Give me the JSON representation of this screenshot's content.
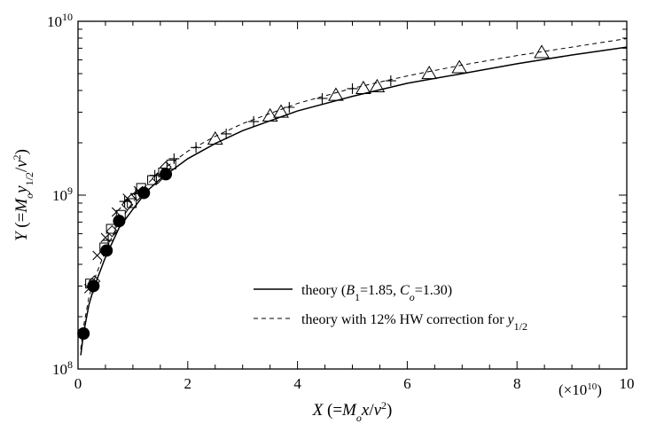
{
  "chart_data": {
    "type": "scatter",
    "x_scale": "linear",
    "y_scale": "log",
    "xlim": [
      0,
      10
    ],
    "ylim": [
      100000000.0,
      10000000000.0
    ],
    "x_ticks": [
      0,
      2,
      4,
      6,
      8,
      10
    ],
    "x_tick_labels": [
      "0",
      "2",
      "4",
      "6",
      "8",
      "10"
    ],
    "y_ticks": [
      100000000.0,
      1000000000.0,
      10000000000.0
    ],
    "y_tick_labels": [
      {
        "base": "10",
        "exp": "8"
      },
      {
        "base": "10",
        "exp": "9"
      },
      {
        "base": "10",
        "exp": "10"
      }
    ],
    "x_multiplier": {
      "prefix": "(×10",
      "exp": "10",
      "suffix": ")"
    },
    "xlabel": {
      "lead": "X",
      "open": " (=",
      "M": "M",
      "o": "o",
      "x": "x",
      "slash": "/",
      "nu": "ν",
      "sq": "2",
      "close": ")"
    },
    "ylabel": {
      "lead": "Y",
      "open": " (=",
      "M": "M",
      "o": "o",
      "y": "y",
      "half": "1/2",
      "slash": "/",
      "nu": "ν",
      "sq": "2",
      "close": ")"
    },
    "legend": {
      "position": "lower-right",
      "entries": [
        {
          "style": "solid",
          "parts": {
            "pre": "theory (",
            "B": "B",
            "Bsub": "1",
            "mid": "=1.85, ",
            "C": "C",
            "Csub": "o",
            "post": "=1.30)"
          }
        },
        {
          "style": "dashed",
          "parts": {
            "pre": "theory with 12% HW correction for ",
            "y": "y",
            "ysub": "1/2"
          }
        }
      ]
    },
    "curves": [
      {
        "style": "solid",
        "x": [
          0.02,
          0.05,
          0.1,
          0.2,
          0.3,
          0.5,
          0.75,
          1.0,
          1.25,
          1.5,
          2.0,
          2.5,
          3.0,
          4.0,
          5.0,
          6.0,
          7.0,
          8.0,
          9.0,
          10.0
        ],
        "y": [
          90000000.0,
          120000000.0,
          160000000.0,
          235000000.0,
          300000000.0,
          440000000.0,
          650000000.0,
          830000000.0,
          1050000000.0,
          1240000000.0,
          1620000000.0,
          1980000000.0,
          2350000000.0,
          3050000000.0,
          3700000000.0,
          4400000000.0,
          5000000000.0,
          5700000000.0,
          6400000000.0,
          7100000000.0
        ]
      },
      {
        "style": "dashed",
        "x": [
          0.02,
          0.05,
          0.1,
          0.2,
          0.3,
          0.5,
          0.75,
          1.0,
          1.25,
          1.5,
          2.0,
          2.5,
          3.0,
          4.0,
          5.0,
          6.0,
          7.0,
          8.0,
          9.0,
          10.0
        ],
        "y": [
          95000000.0,
          130000000.0,
          175000000.0,
          260000000.0,
          330000000.0,
          480000000.0,
          700000000.0,
          910000000.0,
          1150000000.0,
          1370000000.0,
          1790000000.0,
          2180000000.0,
          2580000000.0,
          3370000000.0,
          4120000000.0,
          4850000000.0,
          5600000000.0,
          6350000000.0,
          7100000000.0,
          7950000000.0
        ]
      }
    ],
    "series": [
      {
        "marker": "filled-circle",
        "x": [
          0.1,
          0.28,
          0.52,
          0.75,
          1.2,
          1.6
        ],
        "y": [
          160000000.0,
          300000000.0,
          480000000.0,
          710000000.0,
          1030000000.0,
          1320000000.0
        ]
      },
      {
        "marker": "triangle",
        "x": [
          2.5,
          3.5,
          3.7,
          4.7,
          5.2,
          5.45,
          6.4,
          6.95,
          8.45
        ],
        "y": [
          2100000000.0,
          2850000000.0,
          3000000000.0,
          3750000000.0,
          4100000000.0,
          4200000000.0,
          5000000000.0,
          5400000000.0,
          6600000000.0
        ]
      },
      {
        "marker": "plus",
        "x": [
          0.55,
          0.85,
          1.05,
          1.4,
          1.75,
          2.15,
          2.7,
          3.2,
          3.85,
          4.45,
          5.0,
          5.7
        ],
        "y": [
          550000000.0,
          920000000.0,
          1020000000.0,
          1300000000.0,
          1620000000.0,
          1880000000.0,
          2250000000.0,
          2650000000.0,
          3200000000.0,
          3600000000.0,
          4100000000.0,
          4550000000.0
        ]
      },
      {
        "marker": "cross",
        "x": [
          0.2,
          0.35,
          0.5,
          0.7,
          0.9,
          1.1
        ],
        "y": [
          290000000.0,
          450000000.0,
          570000000.0,
          800000000.0,
          960000000.0,
          1060000000.0
        ]
      },
      {
        "marker": "square",
        "x": [
          0.22,
          0.48,
          0.6,
          0.78,
          0.98,
          1.15,
          1.35,
          1.55,
          1.7
        ],
        "y": [
          310000000.0,
          500000000.0,
          640000000.0,
          770000000.0,
          900000000.0,
          1100000000.0,
          1220000000.0,
          1350000000.0,
          1500000000.0
        ]
      },
      {
        "marker": "diamond",
        "x": [
          0.3,
          0.62,
          0.9,
          1.08,
          1.45,
          1.6
        ],
        "y": [
          320000000.0,
          620000000.0,
          880000000.0,
          1000000000.0,
          1250000000.0,
          1450000000.0
        ]
      }
    ]
  }
}
